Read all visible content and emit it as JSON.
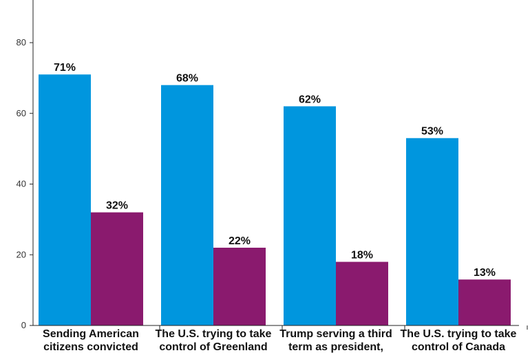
{
  "chart_data": {
    "type": "bar",
    "categories": [
      [
        "Sending American",
        "citizens convicted"
      ],
      [
        "The U.S. trying to take",
        "control of Greenland"
      ],
      [
        "Trump serving a third",
        "term as president,"
      ],
      [
        "The U.S. trying to take",
        "control of Canada"
      ]
    ],
    "series": [
      {
        "values": [
          71,
          68,
          62,
          53
        ],
        "labels": [
          "71%",
          "68%",
          "62%",
          "53%"
        ],
        "color": "#0096DE"
      },
      {
        "values": [
          32,
          22,
          18,
          13
        ],
        "labels": [
          "32%",
          "22%",
          "18%",
          "13%"
        ],
        "color": "#8A1A6E"
      }
    ],
    "title": "",
    "xlabel": "",
    "ylabel": "",
    "ylim": [
      0,
      90
    ],
    "yticks": [
      0,
      20,
      40,
      60,
      80
    ],
    "ytick_labels": [
      "0",
      "20",
      "40",
      "60",
      "80"
    ],
    "grid": false,
    "legend": "none"
  }
}
